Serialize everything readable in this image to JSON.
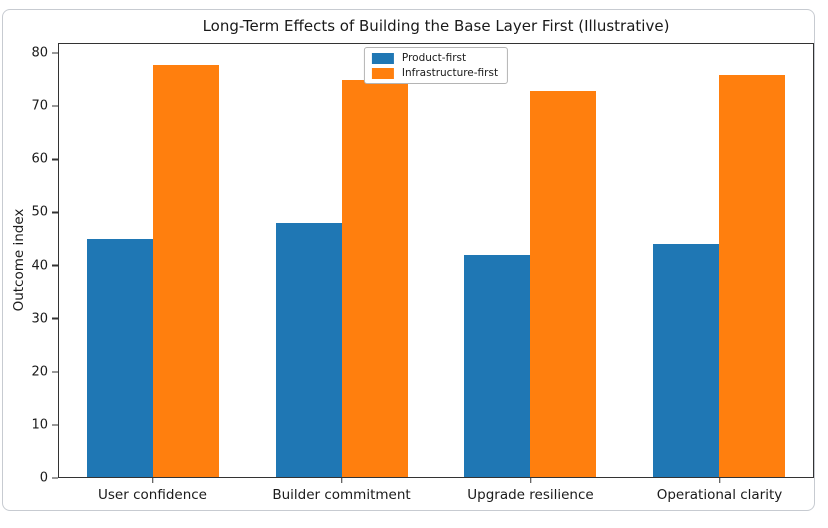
{
  "figure": {
    "card_border_color": "#c7cbd1",
    "background_color": "#ffffff"
  },
  "chart_data": {
    "type": "bar",
    "title": "Long-Term Effects of Building the Base Layer First (Illustrative)",
    "xlabel": "",
    "ylabel": "Outcome index",
    "categories": [
      "User confidence",
      "Builder commitment",
      "Upgrade resilience",
      "Operational clarity"
    ],
    "series": [
      {
        "name": "Product-first",
        "color": "#1f77b4",
        "values": [
          45,
          48,
          42,
          44
        ]
      },
      {
        "name": "Infrastructure-first",
        "color": "#ff7f0e",
        "values": [
          78,
          75,
          73,
          76
        ]
      }
    ],
    "yticks": [
      0,
      10,
      20,
      30,
      40,
      50,
      60,
      70,
      80
    ],
    "ylim": [
      0,
      81.9
    ],
    "bar_width_fraction": 0.35,
    "grid": false,
    "legend_position": "upper center",
    "text_color": "#1a1a1a",
    "spine_color": "#333333"
  }
}
